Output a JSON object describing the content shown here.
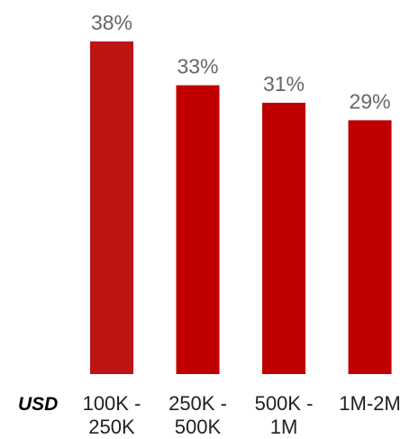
{
  "chart_data": {
    "type": "bar",
    "unit_label": "USD",
    "categories": [
      [
        "100K -",
        "250K"
      ],
      [
        "250K -",
        "500K"
      ],
      [
        "500K -",
        "1M"
      ],
      [
        "1M-2M"
      ]
    ],
    "values": [
      38,
      33,
      31,
      29
    ],
    "value_labels": [
      "38%",
      "33%",
      "31%",
      "29%"
    ],
    "ylim": [
      0,
      38
    ],
    "bar_colors": [
      "#bd1414",
      "#c00000",
      "#c00000",
      "#c00000"
    ],
    "grid": false,
    "legend": "none"
  }
}
